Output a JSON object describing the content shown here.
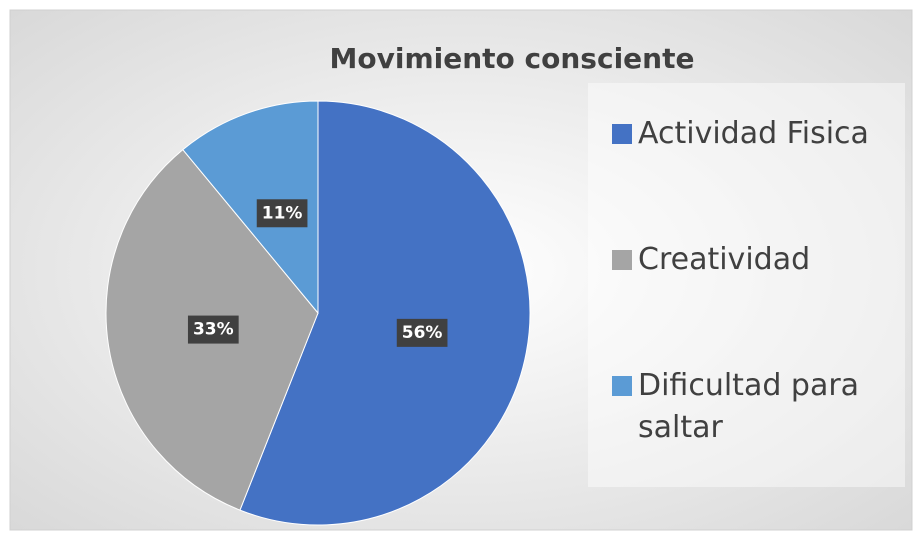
{
  "chart_data": {
    "type": "pie",
    "title": "Movimiento consciente",
    "categories": [
      "Actividad Fisica",
      "Creatividad",
      "Dificultad para saltar"
    ],
    "values": [
      56,
      33,
      11
    ],
    "value_labels": [
      "56%",
      "33%",
      "11%"
    ],
    "colors": [
      "#4472c4",
      "#a5a5a5",
      "#5b9bd5"
    ],
    "legend": "right"
  }
}
